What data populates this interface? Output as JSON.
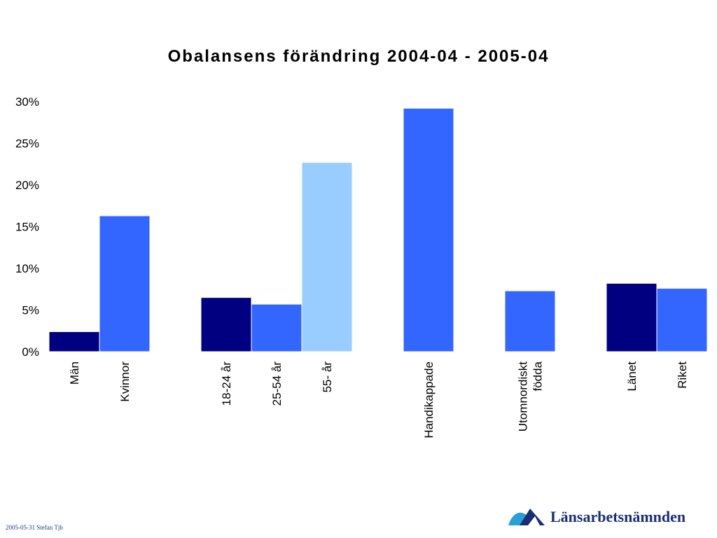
{
  "chart_data": {
    "type": "bar",
    "title": "Obalansens förändring 2004-04 - 2005-04",
    "xlabel": "",
    "ylabel": "",
    "ylim": [
      0,
      30
    ],
    "yticks": [
      "0%",
      "5%",
      "10%",
      "15%",
      "20%",
      "25%",
      "30%"
    ],
    "ytick_values": [
      0,
      5,
      10,
      15,
      20,
      25,
      30
    ],
    "legend": "none",
    "grid": false,
    "groups": [
      {
        "bars": [
          {
            "label": "Män",
            "value": 2.4,
            "color": "#000080"
          },
          {
            "label": "Kvinnor",
            "value": 16.3,
            "color": "#3366FF"
          }
        ]
      },
      {
        "bars": [
          {
            "label": "18-24 år",
            "value": 6.5,
            "color": "#000080"
          },
          {
            "label": "25-54 år",
            "value": 5.7,
            "color": "#3366FF"
          },
          {
            "label": "55- år",
            "value": 22.7,
            "color": "#99CCFF"
          }
        ]
      },
      {
        "bars": [
          {
            "label": "Handikappade",
            "value": 29.2,
            "color": "#3366FF"
          }
        ]
      },
      {
        "bars": [
          {
            "label": "Utomnordiskt födda",
            "label_lines": [
              "Utomnordiskt",
              "födda"
            ],
            "value": 7.3,
            "color": "#3366FF"
          }
        ]
      },
      {
        "bars": [
          {
            "label": "Länet",
            "value": 8.2,
            "color": "#000080"
          },
          {
            "label": "Riket",
            "value": 7.6,
            "color": "#3366FF"
          }
        ]
      }
    ]
  },
  "footer": {
    "note": "2005-05-31 Stefan Tjb",
    "brand_name": "Länsarbetsnämnden",
    "brand_colors": {
      "dark": "#1a2f73",
      "light": "#2a9fd6"
    }
  }
}
